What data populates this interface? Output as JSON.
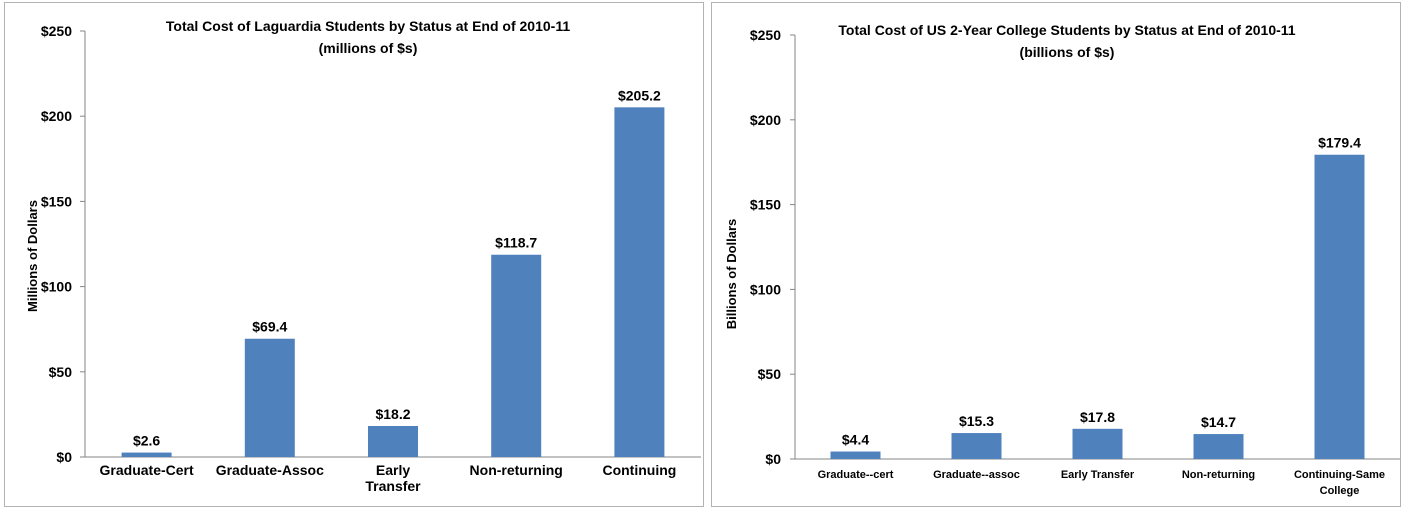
{
  "chart_data": [
    {
      "type": "bar",
      "title": "Total Cost of Laguardia Students by Status at End of 2010-11",
      "subtitle": "(millions of $s)",
      "xlabel": "",
      "ylabel": "Millions of Dollars",
      "categories": [
        "Graduate-Cert",
        "Graduate-Assoc",
        "Early Transfer",
        "Non-returning",
        "Continuing"
      ],
      "values": [
        2.6,
        69.4,
        18.2,
        118.7,
        205.2
      ],
      "data_labels": [
        "$2.6",
        "$69.4",
        "$18.2",
        "$118.7",
        "$205.2"
      ],
      "ylim": [
        0,
        250
      ],
      "yticks": [
        0,
        50,
        100,
        150,
        200,
        250
      ],
      "ytick_labels": [
        "$0",
        "$50",
        "$100",
        "$150",
        "$200",
        "$250"
      ],
      "grid": false,
      "legend": "none",
      "bar_color": "#4f81bd"
    },
    {
      "type": "bar",
      "title": "Total Cost of US 2-Year College Students by Status at End of 2010-11",
      "subtitle": "(billions of $s)",
      "xlabel": "",
      "ylabel": "Billions of Dollars",
      "categories": [
        "Graduate--cert",
        "Graduate--assoc",
        "Early Transfer",
        "Non-returning",
        "Continuing-Same College"
      ],
      "values": [
        4.4,
        15.3,
        17.8,
        14.7,
        179.4
      ],
      "data_labels": [
        "$4.4",
        "$15.3",
        "$17.8",
        "$14.7",
        "$179.4"
      ],
      "ylim": [
        0,
        250
      ],
      "yticks": [
        0,
        50,
        100,
        150,
        200,
        250
      ],
      "ytick_labels": [
        "$0",
        "$50",
        "$100",
        "$150",
        "$200",
        "$250"
      ],
      "grid": false,
      "legend": "none",
      "bar_color": "#4f81bd"
    }
  ]
}
